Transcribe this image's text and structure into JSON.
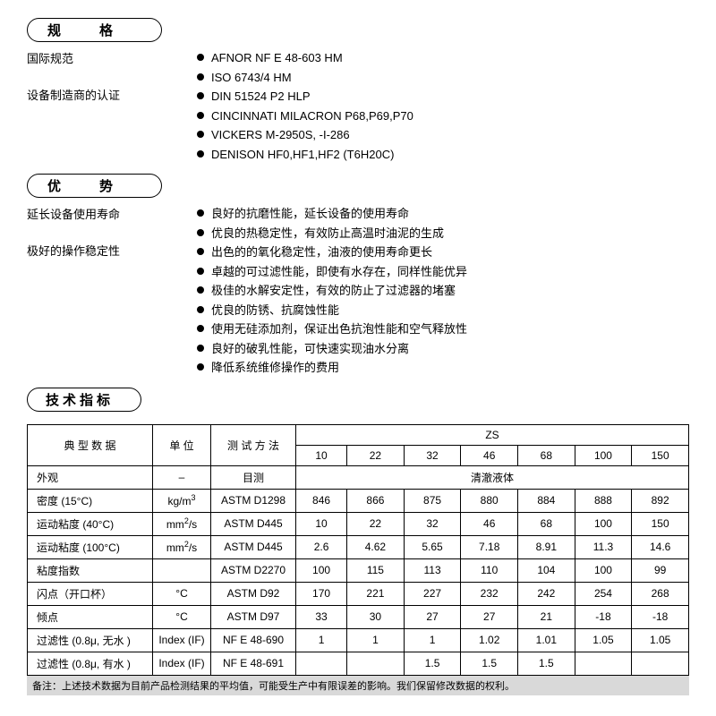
{
  "sections": {
    "spec_title": "规　格",
    "adv_title": "优　势",
    "tech_title": "技术指标"
  },
  "spec": {
    "left_labels": [
      "国际规范",
      "设备制造商的认证"
    ],
    "standards": [
      "AFNOR NF E 48-603 HM",
      "ISO 6743/4 HM",
      "DIN 51524 P2 HLP",
      "CINCINNATI MILACRON P68,P69,P70",
      "VICKERS M-2950S, -I-286",
      "DENISON HF0,HF1,HF2 (T6H20C)"
    ]
  },
  "adv": {
    "left_labels": [
      "延长设备使用寿命",
      "极好的操作稳定性"
    ],
    "items": [
      "良好的抗磨性能，延长设备的使用寿命",
      "优良的热稳定性，有效防止高温时油泥的生成",
      "出色的的氧化稳定性，油液的使用寿命更长",
      "卓越的可过滤性能，即使有水存在，同样性能优异",
      "极佳的水解安定性，有效的防止了过滤器的堵塞",
      "优良的防锈、抗腐蚀性能",
      "使用无硅添加剂，保证出色抗泡性能和空气释放性",
      "良好的破乳性能，可快速实现油水分离",
      "降低系统维修操作的费用"
    ]
  },
  "table": {
    "header_typ": "典 型 数 据",
    "header_unit": "单 位",
    "header_method": "测 试 方 法",
    "header_zs": "ZS",
    "grades": [
      "10",
      "22",
      "32",
      "46",
      "68",
      "100",
      "150"
    ],
    "clear_liquid": "清澈液体",
    "rows": [
      {
        "label": "外观",
        "unit": "–",
        "method": "目测",
        "merged": true
      },
      {
        "label": "密度 (15°C)",
        "unit": "kg/m³",
        "method": "ASTM D1298",
        "vals": [
          "846",
          "866",
          "875",
          "880",
          "884",
          "888",
          "892"
        ]
      },
      {
        "label": "运动粘度 (40°C)",
        "unit": "mm²/s",
        "method": "ASTM D445",
        "vals": [
          "10",
          "22",
          "32",
          "46",
          "68",
          "100",
          "150"
        ]
      },
      {
        "label": "运动粘度 (100°C)",
        "unit": "mm²/s",
        "method": "ASTM D445",
        "vals": [
          "2.6",
          "4.62",
          "5.65",
          "7.18",
          "8.91",
          "11.3",
          "14.6"
        ]
      },
      {
        "label": "粘度指数",
        "unit": "",
        "method": "ASTM D2270",
        "vals": [
          "100",
          "115",
          "113",
          "110",
          "104",
          "100",
          "99"
        ]
      },
      {
        "label": "闪点（开口杯）",
        "unit": "°C",
        "method": "ASTM D92",
        "vals": [
          "170",
          "221",
          "227",
          "232",
          "242",
          "254",
          "268"
        ]
      },
      {
        "label": "倾点",
        "unit": "°C",
        "method": "ASTM D97",
        "vals": [
          "33",
          "30",
          "27",
          "27",
          "21",
          "-18",
          "-18"
        ]
      },
      {
        "label": "过滤性 (0.8μ, 无水 )",
        "unit": "Index (IF)",
        "method": "NF E 48-690",
        "vals": [
          "1",
          "1",
          "1",
          "1.02",
          "1.01",
          "1.05",
          "1.05"
        ]
      },
      {
        "label": "过滤性 (0.8μ, 有水 )",
        "unit": "Index (IF)",
        "method": "NF E 48-691",
        "vals": [
          "",
          "",
          "1.5",
          "1.5",
          "1.5",
          "",
          ""
        ]
      }
    ]
  },
  "footnote": "备注：上述技术数据为目前产品检测结果的平均值，可能受生产中有限误差的影响。我们保留修改数据的权利。",
  "style": {
    "bullet_color": "#000000",
    "title_border_radius": "14px",
    "footnote_bg": "#d9d9d9",
    "table_border_color": "#000000",
    "body_fontsize": 13,
    "table_fontsize": 12
  }
}
